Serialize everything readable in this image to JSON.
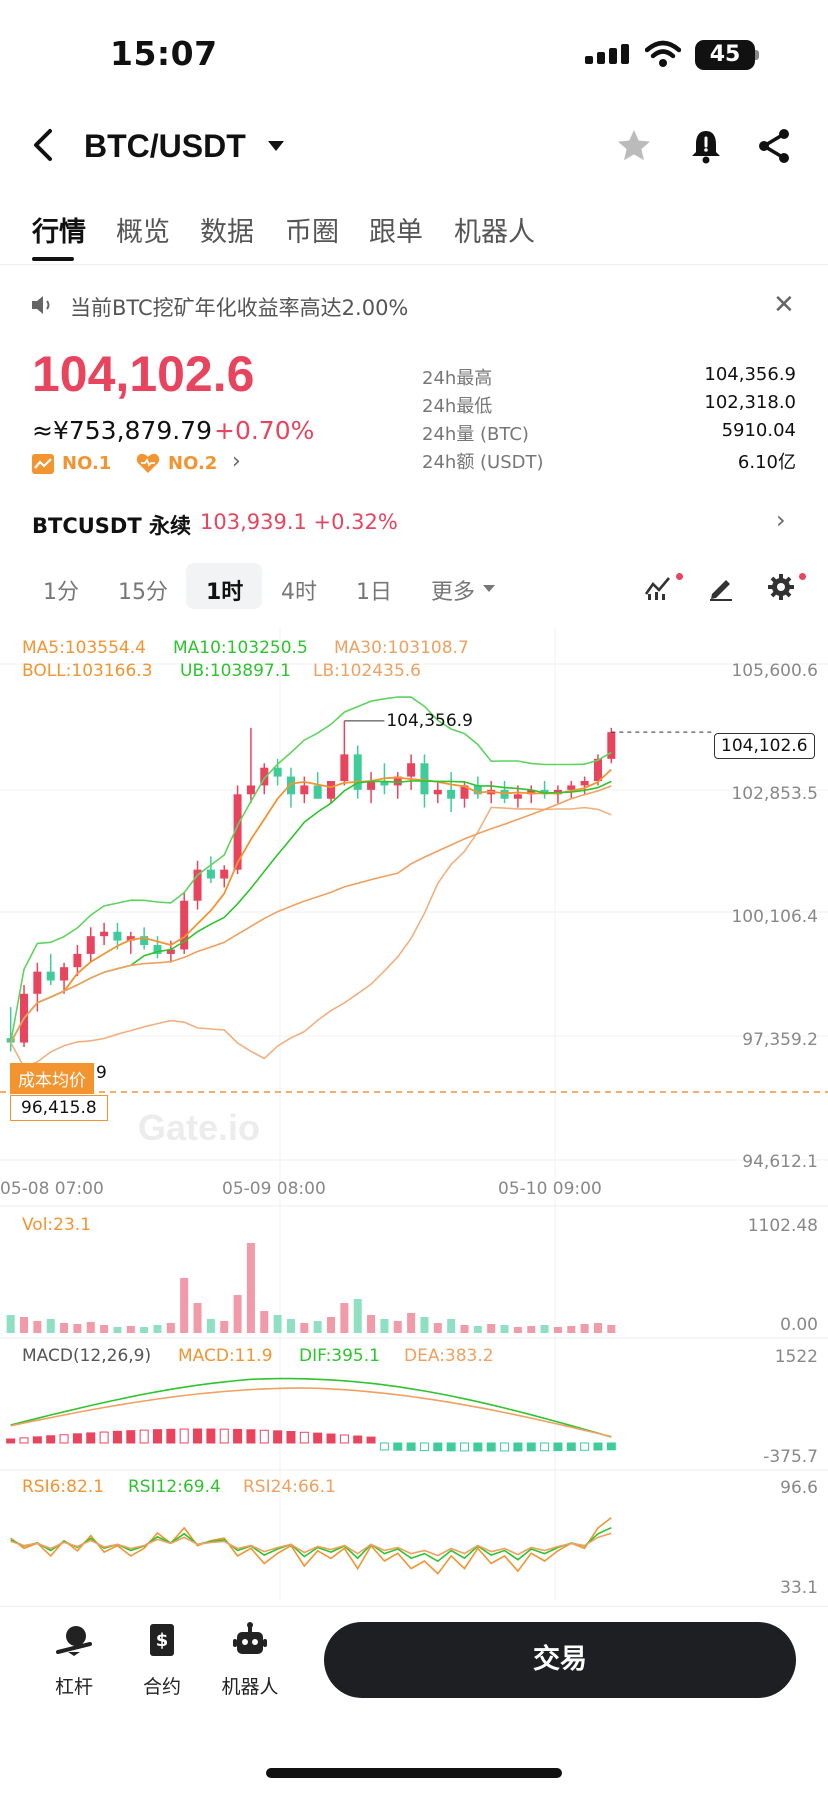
{
  "status_bar": {
    "time": "15:07",
    "battery": "45"
  },
  "header": {
    "pair": "BTC/USDT"
  },
  "tabs": [
    "行情",
    "概览",
    "数据",
    "币圈",
    "跟单",
    "机器人"
  ],
  "notice": {
    "text": "当前BTC挖矿年化收益率高达2.00%"
  },
  "ticker": {
    "price": "104,102.6",
    "cny": "≈¥753,879.79",
    "change": "+0.70%",
    "rank1": "NO.1",
    "rank2": "NO.2",
    "stats": [
      {
        "label": "24h最高",
        "value": "104,356.9"
      },
      {
        "label": "24h最低",
        "value": "102,318.0"
      },
      {
        "label": "24h量 (BTC)",
        "value": "5910.04"
      },
      {
        "label": "24h额 (USDT)",
        "value": "6.10亿"
      }
    ]
  },
  "perpetual": {
    "label": "BTCUSDT 永续",
    "value": "103,939.1 +0.32%"
  },
  "timeframes": [
    "1分",
    "15分",
    "1时",
    "4时",
    "1日",
    "更多"
  ],
  "chart_data": {
    "type": "candlestick",
    "indicators": {
      "ma5": "MA5:103554.4",
      "ma10": "MA10:103250.5",
      "ma30": "MA30:103108.7",
      "boll": "BOLL:103166.3",
      "ub": "UB:103897.1",
      "lb": "LB:102435.6"
    },
    "y_ticks": [
      "105,600.6",
      "102,853.5",
      "100,106.4",
      "97,359.2",
      "94,612.1"
    ],
    "x_ticks": [
      "05-08 07:00",
      "05-09 08:00",
      "05-10 09:00"
    ],
    "high_label": "104,356.9",
    "last_price_tag": "104,102.6",
    "cost_label": "成本均价",
    "cost_value": "96,415.8",
    "cost_suffix": "9",
    "watermark": "Gate.io",
    "candles": [
      [
        97200,
        97900,
        96900,
        97100
      ],
      [
        97100,
        98400,
        97000,
        98200
      ],
      [
        98200,
        98900,
        97800,
        98700
      ],
      [
        98700,
        99100,
        98400,
        98500
      ],
      [
        98500,
        98900,
        98200,
        98800
      ],
      [
        98800,
        99300,
        98600,
        99100
      ],
      [
        99100,
        99700,
        98900,
        99500
      ],
      [
        99500,
        99800,
        99300,
        99600
      ],
      [
        99600,
        99800,
        99200,
        99400
      ],
      [
        99400,
        99600,
        99100,
        99500
      ],
      [
        99500,
        99700,
        99200,
        99300
      ],
      [
        99300,
        99500,
        99000,
        99100
      ],
      [
        99100,
        99400,
        98900,
        99200
      ],
      [
        99200,
        100500,
        99100,
        100300
      ],
      [
        100300,
        101200,
        100100,
        101000
      ],
      [
        101000,
        101300,
        100700,
        100800
      ],
      [
        100800,
        101100,
        100600,
        101000
      ],
      [
        101000,
        102900,
        100900,
        102700
      ],
      [
        102700,
        104200,
        102500,
        102900
      ],
      [
        102900,
        103400,
        102700,
        103300
      ],
      [
        103300,
        103500,
        102900,
        103100
      ],
      [
        103100,
        103300,
        102400,
        102700
      ],
      [
        102700,
        103100,
        102500,
        102900
      ],
      [
        102900,
        103200,
        102600,
        102600
      ],
      [
        102600,
        103000,
        102500,
        103000
      ],
      [
        103000,
        104356,
        102900,
        103600
      ],
      [
        103600,
        103800,
        102600,
        102800
      ],
      [
        102800,
        103200,
        102500,
        103000
      ],
      [
        103000,
        103400,
        102700,
        102900
      ],
      [
        102900,
        103200,
        102600,
        103100
      ],
      [
        103100,
        103600,
        102800,
        103400
      ],
      [
        103400,
        103600,
        102400,
        102700
      ],
      [
        102700,
        103000,
        102500,
        102800
      ],
      [
        102800,
        103200,
        102300,
        102600
      ],
      [
        102600,
        103000,
        102400,
        102900
      ],
      [
        102900,
        103100,
        102600,
        102700
      ],
      [
        102700,
        103000,
        102500,
        102800
      ],
      [
        102800,
        103000,
        102500,
        102600
      ],
      [
        102600,
        102900,
        102400,
        102700
      ],
      [
        102700,
        102900,
        102500,
        102800
      ],
      [
        102800,
        103000,
        102600,
        102700
      ],
      [
        102700,
        102900,
        102500,
        102800
      ],
      [
        102800,
        103000,
        102600,
        102900
      ],
      [
        102900,
        103100,
        102700,
        103000
      ],
      [
        103000,
        103600,
        102900,
        103500
      ],
      [
        103500,
        104200,
        103400,
        104102
      ]
    ],
    "volume": {
      "label": "Vol:23.1",
      "y_ticks": [
        "1102.48",
        "0.00"
      ]
    },
    "macd": {
      "label": "MACD(12,26,9)",
      "macd": "MACD:11.9",
      "dif": "DIF:395.1",
      "dea": "DEA:383.2",
      "y_ticks": [
        "1522",
        "-375.7"
      ]
    },
    "rsi": {
      "rsi6": "RSI6:82.1",
      "rsi12": "RSI12:69.4",
      "rsi24": "RSI24:66.1",
      "y_ticks": [
        "96.6",
        "33.1"
      ]
    }
  },
  "bottom_nav": {
    "items": [
      "杠杆",
      "合约",
      "机器人"
    ],
    "trade": "交易"
  },
  "colors": {
    "up": "#e8445e",
    "down": "#3fcc9a",
    "accent": "#f39431"
  }
}
